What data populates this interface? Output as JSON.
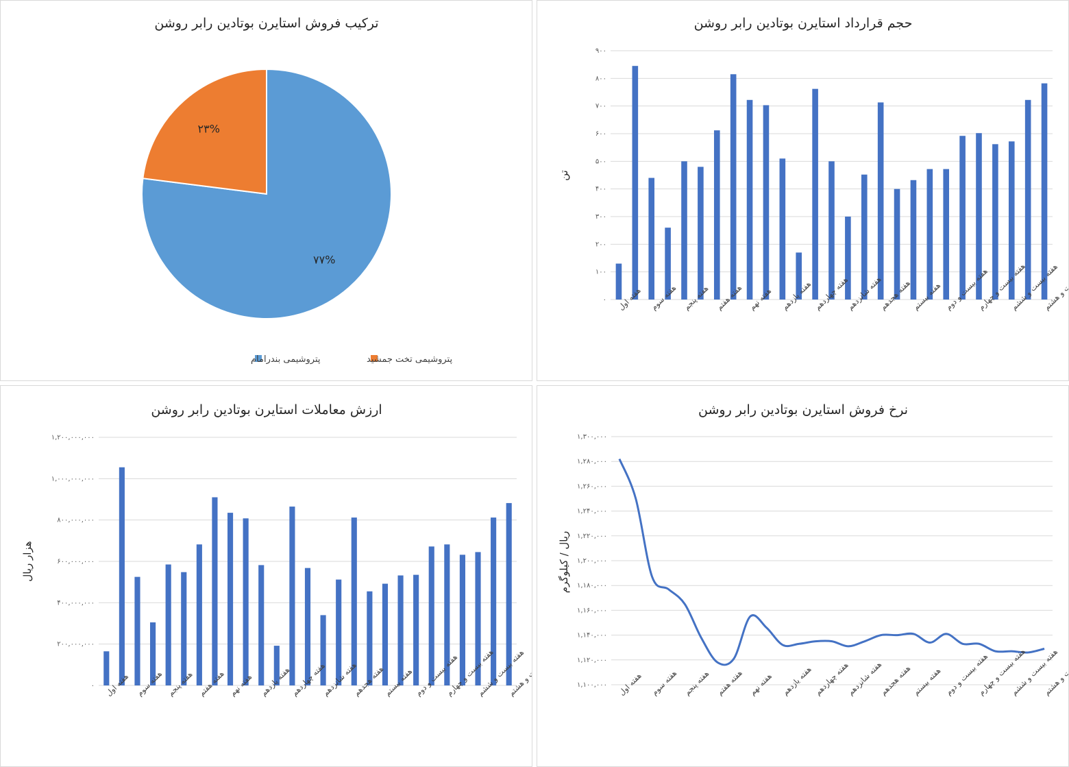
{
  "chart_data": [
    {
      "id": "pie",
      "type": "pie",
      "title": "ترکیب فروش استایرن بوتادین رابر روشن",
      "slices": [
        {
          "name": "پتروشیمی بندرامام",
          "value": 77,
          "label": "۷۷%",
          "color": "#5b9bd5"
        },
        {
          "name": "پتروشیمی تخت جمشید",
          "value": 23,
          "label": "۲۳%",
          "color": "#ed7d31"
        }
      ],
      "legend": "bottom"
    },
    {
      "id": "volume",
      "type": "bar",
      "title": "حجم قرارداد استایرن بوتادین رابر روشن",
      "ylabel": "تن",
      "ylim": [
        0,
        900
      ],
      "ystep": 100,
      "yticks": [
        "۰",
        "۱۰۰",
        "۲۰۰",
        "۳۰۰",
        "۴۰۰",
        "۵۰۰",
        "۶۰۰",
        "۷۰۰",
        "۸۰۰",
        "۹۰۰"
      ],
      "color": "#4472c4",
      "grid": true,
      "categories": [
        "هفته اول",
        "",
        "هفته سوم",
        "",
        "هفته پنجم",
        "",
        "هفته هفتم",
        "",
        "هفته نهم",
        "",
        "هفته یازدهم",
        "",
        "هفته چهاردهم",
        "",
        "هفته شانزدهم",
        "",
        "هفته هجدهم",
        "",
        "هفته بیستم",
        "",
        "هفته بیست و دوم",
        "",
        "هفته بیست و چهارم",
        "",
        "هفته بیست و ششم",
        "",
        "هفته بیست و هشتم"
      ],
      "values": [
        130,
        845,
        440,
        260,
        500,
        480,
        612,
        815,
        722,
        703,
        510,
        170,
        762,
        500,
        300,
        452,
        713,
        400,
        432,
        472,
        472,
        592,
        602,
        562,
        572,
        722,
        782
      ]
    },
    {
      "id": "value",
      "type": "bar",
      "title": "ارزش معاملات استایرن بوتادین رابر روشن",
      "ylabel": "هزار ریال",
      "ylim": [
        0,
        1200000000
      ],
      "ystep": 200000000,
      "yticks": [
        "۰",
        "۲۰۰,۰۰۰,۰۰۰",
        "۴۰۰,۰۰۰,۰۰۰",
        "۶۰۰,۰۰۰,۰۰۰",
        "۸۰۰,۰۰۰,۰۰۰",
        "۱,۰۰۰,۰۰۰,۰۰۰",
        "۱,۲۰۰,۰۰۰,۰۰۰"
      ],
      "color": "#4472c4",
      "grid": true,
      "categories": [
        "هفته اول",
        "",
        "هفته سوم",
        "",
        "هفته پنجم",
        "",
        "هفته هفتم",
        "",
        "هفته نهم",
        "",
        "هفته یازدهم",
        "",
        "هفته چهاردهم",
        "",
        "هفته شانزدهم",
        "",
        "هفته هجدهم",
        "",
        "هفته بیستم",
        "",
        "هفته بیست و دوم",
        "",
        "هفته بیست و چهارم",
        "",
        "هفته بیست و ششم",
        "",
        "هفته بیست و هشتم"
      ],
      "values": [
        165000000,
        1055000000,
        525000000,
        305000000,
        585000000,
        548000000,
        682000000,
        910000000,
        835000000,
        808000000,
        582000000,
        192000000,
        865000000,
        568000000,
        340000000,
        512000000,
        812000000,
        455000000,
        492000000,
        532000000,
        535000000,
        672000000,
        682000000,
        632000000,
        645000000,
        812000000,
        882000000
      ]
    },
    {
      "id": "rate",
      "type": "line",
      "title": "نرخ فروش استایرن بوتادین رابر روشن",
      "ylabel": "ریال / کیلوگرم",
      "ylim": [
        1100000,
        1300000
      ],
      "ystep": 20000,
      "yticks": [
        "۱,۱۰۰,۰۰۰",
        "۱,۱۲۰,۰۰۰",
        "۱,۱۴۰,۰۰۰",
        "۱,۱۶۰,۰۰۰",
        "۱,۱۸۰,۰۰۰",
        "۱,۲۰۰,۰۰۰",
        "۱,۲۲۰,۰۰۰",
        "۱,۲۴۰,۰۰۰",
        "۱,۲۶۰,۰۰۰",
        "۱,۲۸۰,۰۰۰",
        "۱,۳۰۰,۰۰۰"
      ],
      "color": "#4472c4",
      "grid": true,
      "categories": [
        "هفته اول",
        "",
        "هفته سوم",
        "",
        "هفته پنجم",
        "",
        "هفته هفتم",
        "",
        "هفته نهم",
        "",
        "هفته یازدهم",
        "",
        "هفته چهاردهم",
        "",
        "هفته شانزدهم",
        "",
        "هفته هجدهم",
        "",
        "هفته بیستم",
        "",
        "هفته بیست و دوم",
        "",
        "هفته بیست و چهارم",
        "",
        "هفته بیست و ششم",
        "",
        "هفته بیست و هشتم"
      ],
      "values": [
        1282000,
        1250000,
        1187000,
        1177000,
        1165000,
        1138000,
        1118000,
        1121000,
        1155000,
        1146000,
        1132000,
        1133000,
        1135000,
        1135000,
        1131000,
        1135000,
        1140000,
        1140000,
        1141000,
        1134000,
        1141000,
        1133000,
        1133000,
        1127000,
        1127000,
        1126000,
        1129000
      ]
    }
  ]
}
